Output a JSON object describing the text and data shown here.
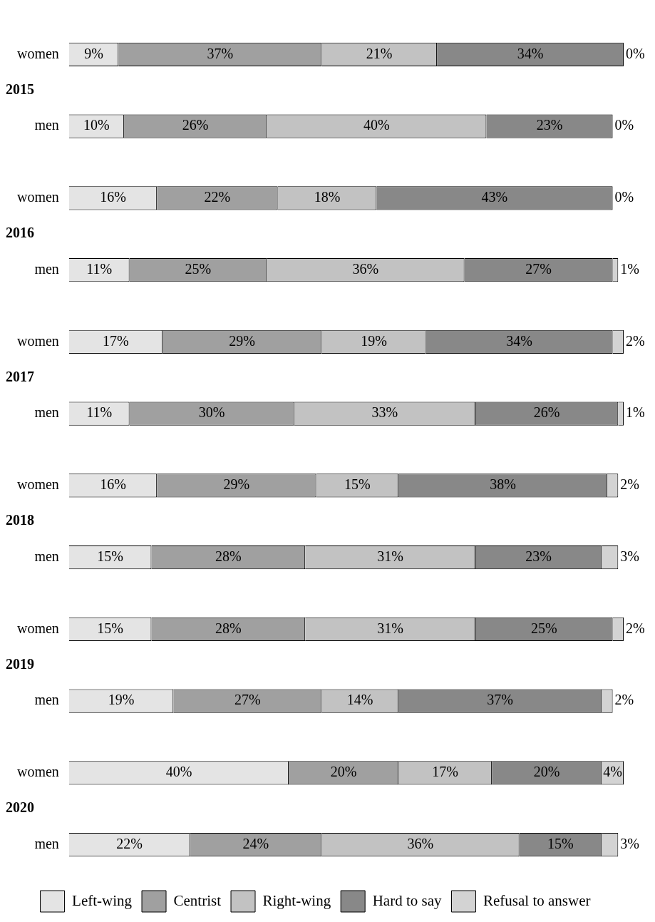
{
  "chart_data": {
    "type": "bar",
    "orientation": "horizontal",
    "stacked": true,
    "categories": [
      "women",
      "men",
      "women",
      "men",
      "women",
      "men",
      "women",
      "men",
      "women",
      "men",
      "women",
      "men"
    ],
    "annotations": [
      "2015",
      "2016",
      "2017",
      "2018",
      "2019",
      "2020"
    ],
    "xlim": [
      0,
      101
    ],
    "tick_labels": "y",
    "legend": "bottom",
    "series": [
      {
        "name": "Left-wing",
        "color": "#e4e4e4",
        "values": [
          9,
          10,
          16,
          11,
          17,
          11,
          16,
          15,
          15,
          19,
          40,
          22
        ],
        "value_labels": [
          "9%",
          "10%",
          "16%",
          "11%",
          "17%",
          "11%",
          "16%",
          "15%",
          "15%",
          "19%",
          "40%",
          "22%"
        ]
      },
      {
        "name": "Centrist",
        "color": "#a0a0a0",
        "values": [
          37,
          26,
          22,
          25,
          29,
          30,
          29,
          28,
          28,
          27,
          20,
          24
        ],
        "value_labels": [
          "37%",
          "26%",
          "22%",
          "25%",
          "29%",
          "30%",
          "29%",
          "28%",
          "28%",
          "27%",
          "20%",
          "24%"
        ]
      },
      {
        "name": "Right-wing",
        "color": "#c2c2c2",
        "values": [
          21,
          40,
          18,
          36,
          19,
          33,
          15,
          31,
          31,
          14,
          17,
          36
        ],
        "value_labels": [
          "21%",
          "40%",
          "18%",
          "36%",
          "19%",
          "33%",
          "15%",
          "31%",
          "31%",
          "14%",
          "17%",
          "36%"
        ]
      },
      {
        "name": "Hard to say",
        "color": "#888888",
        "values": [
          34,
          23,
          43,
          27,
          34,
          26,
          38,
          23,
          25,
          37,
          20,
          15
        ],
        "value_labels": [
          "34%",
          "23%",
          "43%",
          "27%",
          "34%",
          "26%",
          "38%",
          "23%",
          "25%",
          "37%",
          "20%",
          "15%"
        ]
      },
      {
        "name": "Refusal to answer",
        "color": "#d3d3d3",
        "values": [
          0,
          0,
          0,
          1,
          2,
          1,
          2,
          3,
          2,
          2,
          4,
          3
        ],
        "value_labels": [
          "0%",
          "0%",
          "0%",
          "1%",
          "2%",
          "1%",
          "2%",
          "3%",
          "2%",
          "2%",
          "4%",
          "3%"
        ]
      }
    ]
  }
}
